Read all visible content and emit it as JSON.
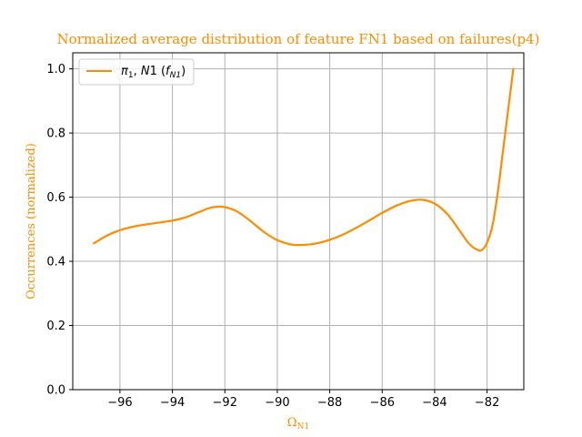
{
  "chart_data": {
    "type": "line",
    "title": "Normalized average distribution of feature FN1 based on failures(p4)",
    "xlabel": {
      "base": "Ω",
      "sub": "N1"
    },
    "ylabel": "Occurrences (normalized)",
    "xlim": [
      -97.8,
      -80.6
    ],
    "ylim": [
      0.0,
      1.05
    ],
    "xticks": [
      -96,
      -94,
      -92,
      -90,
      -88,
      -86,
      -84,
      -82
    ],
    "xtick_labels": [
      "−96",
      "−94",
      "−92",
      "−90",
      "−88",
      "−86",
      "−84",
      "−82"
    ],
    "yticks": [
      0.0,
      0.2,
      0.4,
      0.6,
      0.8,
      1.0
    ],
    "ytick_labels": [
      "0.0",
      "0.2",
      "0.4",
      "0.6",
      "0.8",
      "1.0"
    ],
    "grid": true,
    "legend_position": "top-left",
    "series": [
      {
        "label": {
          "main": "π1, N1 (fN1)"
        },
        "color": "#ff8c00",
        "x": [
          -97.0,
          -96.5,
          -96.0,
          -95.5,
          -95.0,
          -94.5,
          -94.0,
          -93.5,
          -93.0,
          -92.5,
          -92.0,
          -91.5,
          -91.0,
          -90.5,
          -90.0,
          -89.5,
          -89.0,
          -88.5,
          -88.0,
          -87.5,
          -87.0,
          -86.5,
          -86.0,
          -85.5,
          -85.0,
          -84.5,
          -84.0,
          -83.5,
          -83.0,
          -82.7,
          -82.4,
          -82.2,
          -82.0,
          -81.8,
          -81.6,
          -81.4,
          -81.2,
          -81.0
        ],
        "y": [
          0.456,
          0.48,
          0.497,
          0.508,
          0.515,
          0.521,
          0.527,
          0.537,
          0.553,
          0.568,
          0.569,
          0.554,
          0.524,
          0.491,
          0.466,
          0.453,
          0.451,
          0.456,
          0.467,
          0.483,
          0.504,
          0.527,
          0.551,
          0.572,
          0.587,
          0.592,
          0.58,
          0.546,
          0.49,
          0.456,
          0.437,
          0.435,
          0.458,
          0.51,
          0.61,
          0.74,
          0.87,
          1.0
        ]
      }
    ]
  }
}
